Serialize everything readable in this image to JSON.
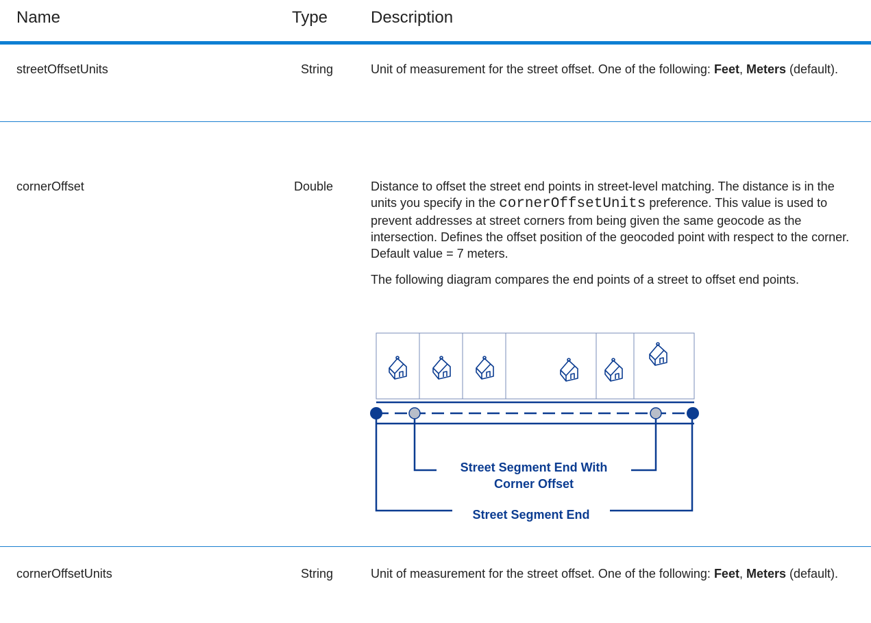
{
  "header": {
    "name": "Name",
    "type": "Type",
    "description": "Description"
  },
  "rows": [
    {
      "name": "streetOffsetUnits",
      "type": "String",
      "description": [
        [
          "Unit of measurement for the street offset. One of the following: ",
          "Feet",
          ", ",
          "Meters",
          " (default)."
        ]
      ]
    },
    {
      "name": "cornerOffset",
      "type": "Double",
      "description": [
        [
          "Distance to offset the street end points in street-level matching. The distance is in the units you specify in the ",
          "cornerOffsetUnits",
          " preference. This value is used to prevent addresses at street corners from being given the same geocode as the intersection. Defines the offset position of the geocoded point with respect to the corner. Default value = 7 meters."
        ],
        [
          "The following diagram compares the end points of a street to offset end points."
        ]
      ],
      "diagram": {
        "labels": [
          "Street Segment End With",
          "Corner Offset",
          "Street Segment End"
        ]
      }
    },
    {
      "name": "cornerOffsetUnits",
      "type": "String",
      "description": [
        [
          "Unit of measurement for the street offset. One of the following: ",
          "Feet",
          ", ",
          "Meters",
          " (default)."
        ]
      ]
    }
  ]
}
